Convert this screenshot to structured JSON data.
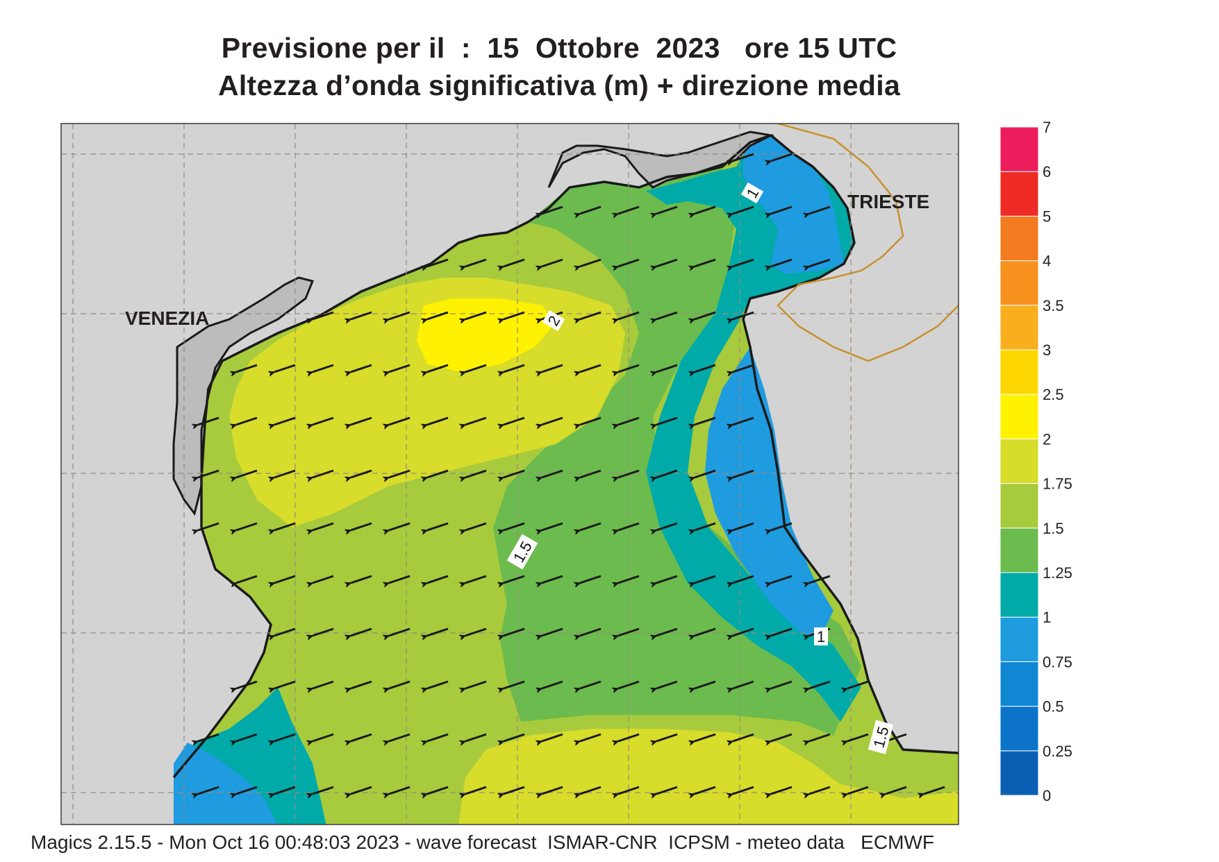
{
  "title_line1": "Previsione per il  :  15  Ottobre  2023   ore 15 UTC",
  "title_line2": "Altezza d’onda significativa (m) + direzione media",
  "cities": {
    "venezia": "VENEZIA",
    "trieste": "TRIESTE"
  },
  "contour_labels": {
    "c1": "1",
    "c2": "2",
    "c3": "1.5",
    "c4": "1",
    "c5": "1.5"
  },
  "legend": {
    "labels": [
      "0",
      "0.25",
      "0.5",
      "0.75",
      "1",
      "1.25",
      "1.5",
      "1.75",
      "2",
      "2.5",
      "3",
      "3.5",
      "4",
      "5",
      "6",
      "7"
    ],
    "colors": [
      "#0a5fb4",
      "#0c74c8",
      "#1187d4",
      "#1f9be0",
      "#00aaa8",
      "#6cbb4e",
      "#a7cb3c",
      "#d8dc2a",
      "#fff200",
      "#ffd700",
      "#f9ae1d",
      "#f7921e",
      "#f47b20",
      "#ee2b24",
      "#ed1c5c"
    ]
  },
  "wave_field": {
    "direction": "towards west-southwest",
    "max_height_m": 2.2,
    "min_height_m": 0.5
  },
  "footer": "Magics 2.15.5 - Mon Oct 16 00:48:03 2023 - wave forecast  ISMAR-CNR  ICPSM - meteo data   ECMWF"
}
